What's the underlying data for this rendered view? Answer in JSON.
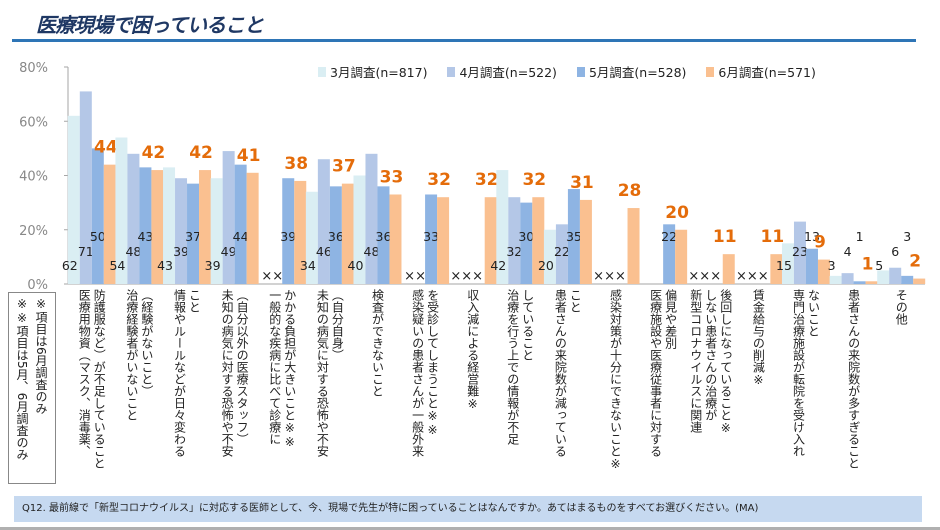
{
  "title": "医療現場で困っていること",
  "footer": "Q12. 最前線で「新型コロナウイルス」に対応する医師として、今、現場で先生が特に困っていることはなんですか。あてはまるものをすべてお選びください。(MA)",
  "notes": [
    "※項目は6月調査のみ",
    "※※項目は5月、6月調査のみ"
  ],
  "chart_data": {
    "type": "bar",
    "title": "医療現場で困っていること",
    "ylim": [
      0,
      80
    ],
    "yticks": [
      "0%",
      "20%",
      "40%",
      "60%",
      "80%"
    ],
    "ytick_values": [
      0,
      20,
      40,
      60,
      80
    ],
    "legend_position": "top-right",
    "colors": [
      "#daeef3",
      "#b4c7e7",
      "#8eb4e3",
      "#fac090"
    ],
    "highlight_color": "#e46c0a",
    "series": [
      {
        "name": "3月調査(n=817)",
        "values": [
          62,
          54,
          43,
          39,
          null,
          34,
          40,
          null,
          null,
          42,
          20,
          null,
          null,
          null,
          null,
          15,
          3,
          5
        ]
      },
      {
        "name": "4月調査(n=522)",
        "values": [
          71,
          48,
          39,
          49,
          null,
          46,
          48,
          null,
          null,
          32,
          22,
          null,
          null,
          null,
          null,
          23,
          4,
          6
        ]
      },
      {
        "name": "5月調査(n=528)",
        "values": [
          50,
          43,
          37,
          44,
          39,
          36,
          36,
          33,
          null,
          30,
          35,
          null,
          22,
          null,
          null,
          13,
          1,
          3
        ]
      },
      {
        "name": "6月調査(n=571)",
        "values": [
          44,
          42,
          42,
          41,
          38,
          37,
          33,
          32,
          32,
          32,
          31,
          28,
          20,
          11,
          11,
          9,
          1,
          2
        ]
      }
    ],
    "missing_markers": [
      "",
      "",
      "",
      "",
      "××",
      "",
      "",
      "××",
      "×××",
      "",
      "",
      "×××",
      "",
      "×××",
      "×××",
      "",
      "",
      ""
    ],
    "categories": [
      [
        "医療用物資（マスク、消毒薬、",
        "防護服など）が不足していること"
      ],
      [
        "治療経験者がいないこと",
        "（経験がないこと）"
      ],
      [
        "情報やルールなどが日々変わる",
        "こと"
      ],
      [
        "未知の病気に対する恐怖や不安",
        "（自分以外の医療スタッフ）"
      ],
      [
        "一般的な疾病に比べて診療に",
        "かかる負担が大きいこと※※"
      ],
      [
        "未知の病気に対する恐怖や不安",
        "（自分自身）"
      ],
      [
        "検査ができないこと"
      ],
      [
        "感染疑いの患者さんが一般外来",
        "を受診してしまうこと※※"
      ],
      [
        "収入減による経営難※"
      ],
      [
        "治療を行う上での情報が不足",
        "していること"
      ],
      [
        "患者さんの来院数が減っている",
        "こと"
      ],
      [
        "感染対策が十分にできないこと※"
      ],
      [
        "医療施設や医療従事者に対する",
        "偏見や差別"
      ],
      [
        "新型コロナウイルスに関連",
        "しない患者さんの治療が",
        "後回しになっていること※"
      ],
      [
        "賃金給与の削減※"
      ],
      [
        "専門治療施設が転院を受け入れ",
        "ないこと"
      ],
      [
        "患者さんの来院数が多すぎること"
      ],
      [
        "その他"
      ]
    ]
  }
}
